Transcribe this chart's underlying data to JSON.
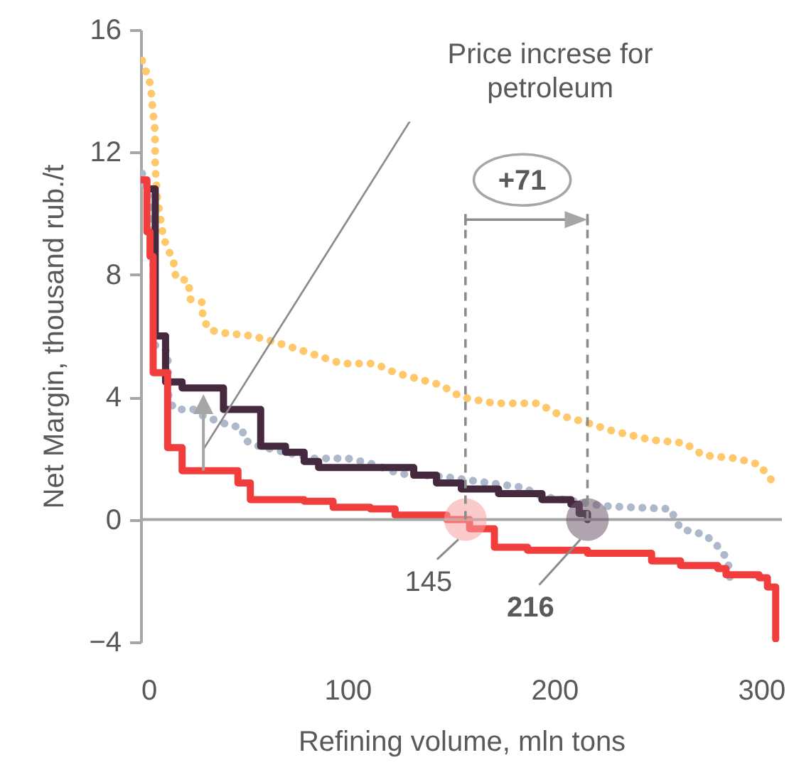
{
  "chart_data": {
    "type": "line",
    "xlabel": "Refining volume, mln tons",
    "ylabel": "Net Margin, thousand rub./t",
    "xlim": [
      0,
      310
    ],
    "xticks": [
      0,
      100,
      200,
      300
    ],
    "ylim": [
      -4,
      16
    ],
    "yticks": [
      -4,
      0,
      4,
      8,
      12,
      16
    ],
    "grid": false,
    "ref_lines": [
      {
        "axis": "y",
        "value": 0,
        "color": "#a6a6a6"
      }
    ],
    "annotations": [
      "Price increse for petroleum",
      "+71",
      {
        "text": "145",
        "x": 157,
        "y": 0
      },
      {
        "text": "216",
        "x": 216,
        "y": 0
      }
    ],
    "series": [
      {
        "line_style": "dotted",
        "color": "#ffc96b",
        "x": [
          0.7,
          4.8,
          5.5,
          6.9,
          7,
          8,
          11,
          15.9,
          17,
          23,
          24,
          29.7,
          30,
          33,
          40,
          54,
          65,
          79,
          97,
          113,
          123,
          145,
          155,
          171,
          192,
          203,
          214,
          228,
          247,
          263,
          272,
          288,
          299,
          306
        ],
        "values": [
          15.0,
          14.2,
          13.6,
          12.7,
          11.5,
          10.5,
          9.2,
          8.4,
          7.9,
          7.8,
          7.2,
          7.1,
          6.6,
          6.2,
          6.1,
          6.0,
          5.8,
          5.5,
          5.1,
          5.1,
          4.8,
          4.4,
          4.0,
          3.8,
          3.8,
          3.4,
          3.2,
          2.9,
          2.6,
          2.5,
          2.1,
          2.0,
          1.8,
          1.2
        ]
      },
      {
        "line_style": "dotted",
        "color": "#adb9ca",
        "x": [
          0.7,
          4,
          5.5,
          6,
          6.5,
          7,
          13,
          13.5,
          16.6,
          26,
          30,
          42,
          49,
          50,
          57,
          70,
          83,
          100,
          113,
          125,
          147,
          168,
          185,
          194,
          210,
          223,
          237,
          256,
          261,
          273,
          281,
          284,
          285
        ],
        "values": [
          11.3,
          10.4,
          9.6,
          8.3,
          6.8,
          5.7,
          5.5,
          3.9,
          3.6,
          3.6,
          3.4,
          3.1,
          3.0,
          2.6,
          2.4,
          2.2,
          2.0,
          2.0,
          1.8,
          1.5,
          1.4,
          1.2,
          1.05,
          0.75,
          0.6,
          0.45,
          0.4,
          0.35,
          -0.3,
          -0.5,
          -1.0,
          -1.4,
          -1.95
        ]
      },
      {
        "type": "step",
        "color": "#44293f",
        "x": [
          5,
          7,
          12,
          20,
          40,
          58,
          70,
          79,
          86,
          132,
          143,
          155,
          173,
          194,
          208,
          212,
          216
        ],
        "values": [
          10.8,
          6.0,
          4.5,
          4.3,
          3.6,
          2.4,
          2.2,
          1.9,
          1.7,
          1.45,
          1.2,
          1.0,
          0.85,
          0.65,
          0.5,
          0.2,
          0
        ]
      },
      {
        "type": "step",
        "color": "#f23d3d",
        "x": [
          0,
          3,
          4.5,
          6,
          13,
          20,
          47,
          53,
          79,
          93,
          111,
          123,
          148,
          159,
          171,
          187,
          216,
          247,
          261,
          279,
          283,
          299,
          303,
          307
        ],
        "values": [
          11.1,
          9.4,
          8.6,
          4.8,
          2.35,
          1.6,
          1.2,
          0.65,
          0.6,
          0.4,
          0.35,
          0.15,
          0,
          -0.3,
          -0.9,
          -1.0,
          -1.1,
          -1.35,
          -1.5,
          -1.6,
          -1.8,
          -1.9,
          -2.2,
          -3.9
        ]
      }
    ]
  }
}
